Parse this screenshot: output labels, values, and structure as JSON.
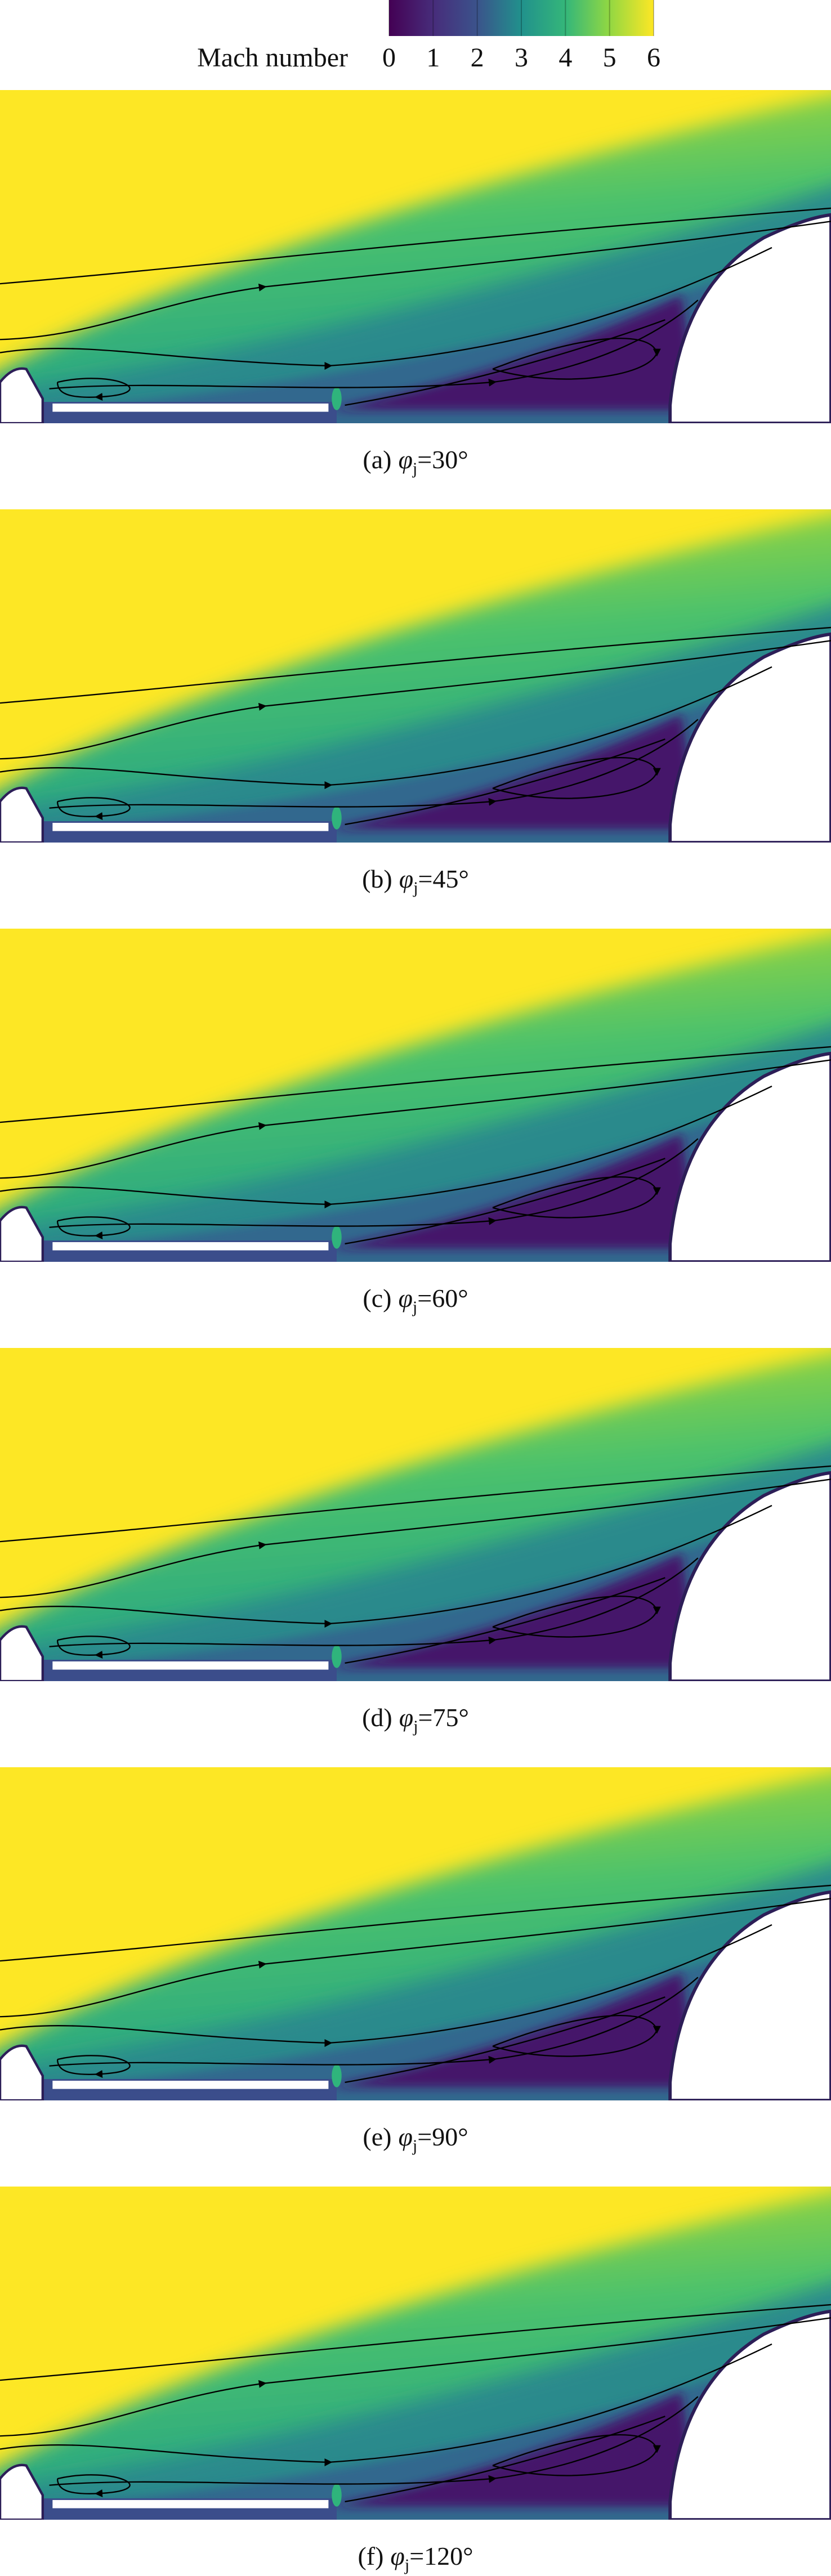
{
  "colorbar": {
    "label": "Mach number",
    "range": [
      0,
      6
    ],
    "ticks": [
      0,
      1,
      2,
      3,
      4,
      5,
      6
    ]
  },
  "panels": [
    {
      "caption": {
        "label": "(a)",
        "symbol": "φ",
        "subscript": "j",
        "suffix": "=30°"
      }
    },
    {
      "caption": {
        "label": "(b)",
        "symbol": "φ",
        "subscript": "j",
        "suffix": "=45°"
      }
    },
    {
      "caption": {
        "label": "(c)",
        "symbol": "φ",
        "subscript": "j",
        "suffix": "=60°"
      }
    },
    {
      "caption": {
        "label": "(d)",
        "symbol": "φ",
        "subscript": "j",
        "suffix": "=75°"
      }
    },
    {
      "caption": {
        "label": "(e)",
        "symbol": "φ",
        "subscript": "j",
        "suffix": "=90°"
      }
    },
    {
      "caption": {
        "label": "(f)",
        "symbol": "φ",
        "subscript": "j",
        "suffix": "=120°"
      }
    }
  ]
}
